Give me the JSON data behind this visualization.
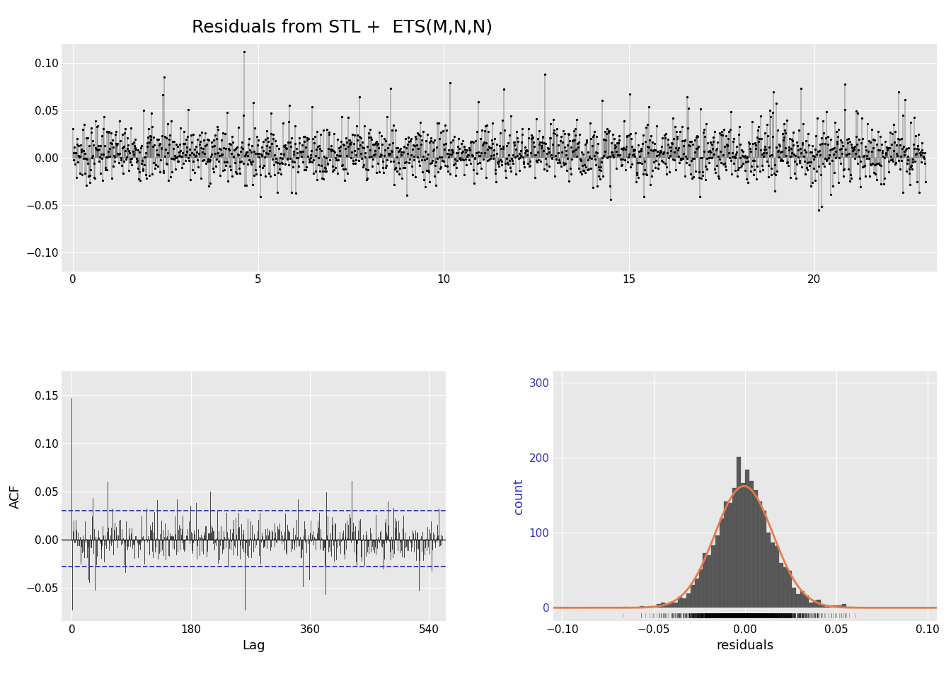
{
  "title": "Residuals from STL +  ETS(M,N,N)",
  "title_fontsize": 18,
  "bg_color": "#e8e8e8",
  "fig_bg_color": "#ffffff",
  "top_plot": {
    "ylim": [
      -0.12,
      0.12
    ],
    "yticks": [
      -0.1,
      -0.05,
      0.0,
      0.05,
      0.1
    ],
    "xlim": [
      -0.3,
      23.3
    ],
    "xticks": [
      0,
      5,
      10,
      15,
      20
    ],
    "n_points": 1750,
    "seed": 7,
    "line_color": "#000000",
    "dot_color": "#000000"
  },
  "acf_plot": {
    "ylim": [
      -0.085,
      0.175
    ],
    "yticks": [
      -0.05,
      0.0,
      0.05,
      0.1,
      0.15
    ],
    "xlim": [
      -15,
      565
    ],
    "xticks": [
      0,
      180,
      360,
      540
    ],
    "xlabel": "Lag",
    "ylabel": "ACF",
    "n_lags": 560,
    "acf_seed": 42,
    "ci_upper": 0.03,
    "ci_lower": -0.028,
    "ci_color": "#3333bb",
    "bar_color": "#000000",
    "lag0_acf": 0.147,
    "lag1_acf": -0.073
  },
  "hist_plot": {
    "xlabel": "residuals",
    "ylabel": "count",
    "xlim": [
      -0.105,
      0.105
    ],
    "xticks": [
      -0.1,
      -0.05,
      0.0,
      0.05,
      0.1
    ],
    "ylim": [
      -18,
      315
    ],
    "yticks": [
      0,
      100,
      200,
      300
    ],
    "bar_color": "#595959",
    "curve_color": "#e8794a",
    "n_bins": 55,
    "hist_seed": 12,
    "rug_color": "#000000",
    "hist_mean": 0.0,
    "hist_std": 0.018,
    "n_hist": 2000
  }
}
